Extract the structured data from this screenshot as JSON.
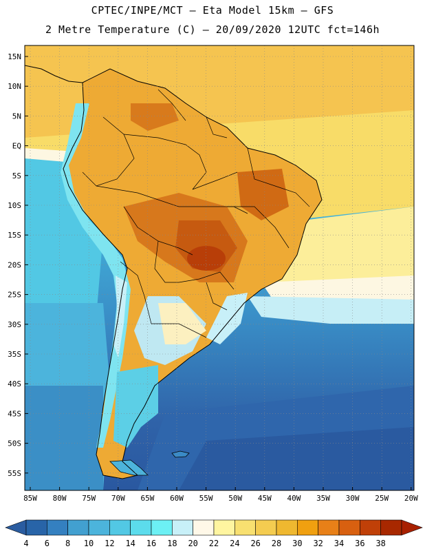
{
  "header": {
    "title_line1": "CPTEC/INPE/MCT –  Eta Model 15km – GFS",
    "title_line2": "2 Metre Temperature (C) – 20/09/2020 12UTC fct=146h"
  },
  "map": {
    "region": "South America",
    "variable": "2 Metre Temperature",
    "units": "C",
    "lat_labels": [
      "15N",
      "10N",
      "5N",
      "EQ",
      "5S",
      "10S",
      "15S",
      "20S",
      "25S",
      "30S",
      "35S",
      "40S",
      "45S",
      "50S",
      "55S"
    ],
    "lon_labels": [
      "85W",
      "80W",
      "75W",
      "70W",
      "65W",
      "60W",
      "55W",
      "50W",
      "45W",
      "40W",
      "35W",
      "30W",
      "25W",
      "20W"
    ],
    "ocean_north_color": "#f5c04a",
    "ocean_south_color": "#2f62a8"
  },
  "colorbar": {
    "labels": [
      "4",
      "6",
      "8",
      "10",
      "12",
      "14",
      "16",
      "18",
      "20",
      "22",
      "24",
      "26",
      "28",
      "30",
      "32",
      "34",
      "36",
      "38"
    ],
    "colors": [
      "#2864a8",
      "#3480c0",
      "#42a0d0",
      "#4cb4dc",
      "#52c8e4",
      "#5cdcec",
      "#6cf0f4",
      "#c8f0f8",
      "#fff8e8",
      "#fff5a0",
      "#f8e070",
      "#f4cc50",
      "#efb830",
      "#f0a010",
      "#e88018",
      "#d86010",
      "#c04008",
      "#a82800"
    ],
    "min_color": "#2a5ca0",
    "max_color": "#a82000"
  }
}
